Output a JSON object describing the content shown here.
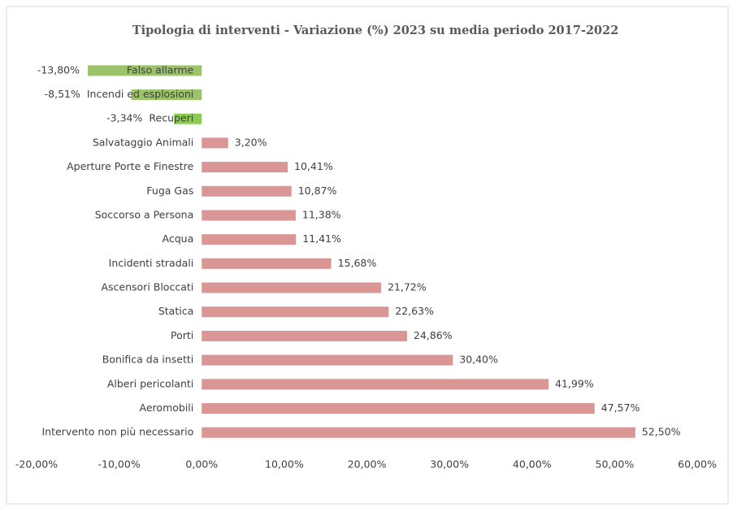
{
  "chart_data": {
    "type": "hbar",
    "title": "Tipologia di interventi - Variazione (%) 2023 su media periodo 2017-2022",
    "categories": [
      "Falso allarme",
      "Incendi ed esplosioni",
      "Recuperi",
      "Salvataggio Animali",
      "Aperture Porte e Finestre",
      "Fuga Gas",
      "Soccorso a Persona",
      "Acqua",
      "Incidenti stradali",
      "Ascensori Bloccati",
      "Statica",
      "Porti",
      "Bonifica da insetti",
      "Alberi pericolanti",
      "Aeromobili",
      "Intervento non più necessario"
    ],
    "values": [
      -13.8,
      -8.51,
      -3.34,
      3.2,
      10.41,
      10.87,
      11.38,
      11.41,
      15.68,
      21.72,
      22.63,
      24.86,
      30.4,
      41.99,
      47.57,
      52.5
    ],
    "value_labels": [
      "-13,80%",
      "-8,51%",
      "-3,34%",
      "3,20%",
      "10,41%",
      "10,87%",
      "11,38%",
      "11,41%",
      "15,68%",
      "21,72%",
      "22,63%",
      "24,86%",
      "30,40%",
      "41,99%",
      "47,57%",
      "52,50%"
    ],
    "colors": [
      "#9bc46a",
      "#9bc46a",
      "#8ccc50",
      "#d99694",
      "#d99694",
      "#d99694",
      "#d99694",
      "#d99694",
      "#d99694",
      "#d99694",
      "#d99694",
      "#d99694",
      "#d99694",
      "#d99694",
      "#d99694",
      "#d99694"
    ],
    "xlim": [
      -20,
      60
    ],
    "xticks": [
      {
        "value": -20,
        "label": "-20,00%"
      },
      {
        "value": -10,
        "label": "-10,00%"
      },
      {
        "value": 0,
        "label": "0,00%"
      },
      {
        "value": 10,
        "label": "10,00%"
      },
      {
        "value": 20,
        "label": "20,00%"
      },
      {
        "value": 30,
        "label": "30,00%"
      },
      {
        "value": 40,
        "label": "40,00%"
      },
      {
        "value": 50,
        "label": "50,00%"
      },
      {
        "value": 60,
        "label": "60,00%"
      }
    ],
    "grid": false
  }
}
